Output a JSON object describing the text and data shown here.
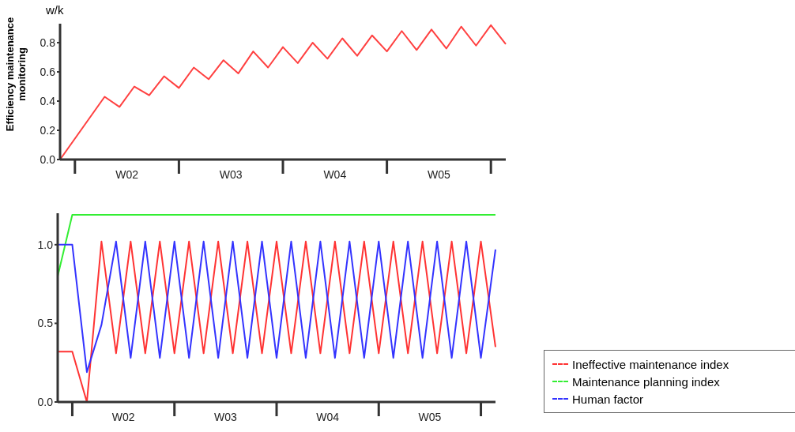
{
  "chart_data": [
    {
      "type": "line",
      "ylabel": "Efficiency maintenance monitoring",
      "annotations": [
        "w/k"
      ],
      "categories": [
        null,
        null,
        null,
        null,
        null,
        null,
        null,
        null,
        null,
        "W02",
        null,
        null,
        null,
        null,
        null,
        null,
        null,
        null,
        null,
        null,
        null,
        null,
        null,
        "W03",
        null,
        null,
        null,
        null,
        null,
        null,
        null,
        null,
        null,
        null,
        null,
        null,
        null,
        "W04",
        null,
        null,
        null,
        null,
        null,
        null,
        null,
        null,
        null,
        null,
        null,
        null,
        null,
        "W05",
        null,
        null,
        null,
        null,
        null,
        null,
        null,
        null,
        null
      ],
      "ylim": [
        0,
        0.93
      ],
      "yticks": [
        {
          "value": 0,
          "label": "0.0"
        },
        {
          "value": 0.2,
          "label": "0.2"
        },
        {
          "value": 0.4,
          "label": "0.4"
        },
        {
          "value": 0.6,
          "label": "0.6"
        },
        {
          "value": 0.8,
          "label": "0.8"
        }
      ],
      "series": [
        {
          "color": "#ff4040",
          "values": [
            0,
            null,
            null,
            null,
            null,
            null,
            0.43,
            null,
            0.36,
            null,
            0.5,
            null,
            0.44,
            null,
            0.57,
            null,
            0.49,
            null,
            0.63,
            null,
            0.55,
            null,
            0.68,
            null,
            0.59,
            null,
            0.74,
            null,
            0.63,
            null,
            0.77,
            null,
            0.66,
            null,
            0.8,
            null,
            0.69,
            null,
            0.83,
            null,
            0.71,
            null,
            0.85,
            null,
            0.74,
            null,
            0.88,
            null,
            0.75,
            null,
            0.89,
            null,
            0.76,
            null,
            0.91,
            null,
            0.78,
            null,
            0.92,
            null,
            0.79
          ]
        }
      ]
    },
    {
      "type": "line",
      "legend": "bottom right",
      "categories": [
        null,
        null,
        null,
        null,
        null,
        null,
        null,
        null,
        null,
        "W02",
        null,
        null,
        null,
        null,
        null,
        null,
        null,
        null,
        null,
        null,
        null,
        null,
        null,
        "W03",
        null,
        null,
        null,
        null,
        null,
        null,
        null,
        null,
        null,
        null,
        null,
        null,
        null,
        "W04",
        null,
        null,
        null,
        null,
        null,
        null,
        null,
        null,
        null,
        null,
        null,
        null,
        null,
        "W05",
        null,
        null,
        null,
        null,
        null,
        null,
        null,
        null,
        null
      ],
      "ylim": [
        0,
        1.2
      ],
      "yticks": [
        {
          "value": 0,
          "label": "0.0"
        },
        {
          "value": 0.5,
          "label": "0.5"
        },
        {
          "value": 1,
          "label": "1.0"
        }
      ],
      "series": [
        {
          "name": "Ineffective maintenance index",
          "color": "#ff3333",
          "values": [
            0.32,
            null,
            0.32,
            null,
            0,
            null,
            1.02,
            null,
            0.31,
            null,
            1.02,
            null,
            0.31,
            null,
            1.02,
            null,
            0.31,
            null,
            1.02,
            null,
            0.31,
            null,
            1.02,
            null,
            0.31,
            null,
            1.02,
            null,
            0.31,
            null,
            1.02,
            null,
            0.31,
            null,
            1.02,
            null,
            0.31,
            null,
            1.02,
            null,
            0.31,
            null,
            1.02,
            null,
            0.31,
            null,
            1.02,
            null,
            0.31,
            null,
            1.02,
            null,
            0.31,
            null,
            1.02,
            null,
            0.31,
            null,
            1.02,
            null,
            0.35
          ]
        },
        {
          "name": "Maintenance planning index",
          "color": "#33ee33",
          "values": [
            0.8,
            null,
            1.19,
            null,
            null,
            null,
            null,
            null,
            null,
            null,
            null,
            null,
            null,
            null,
            null,
            null,
            null,
            null,
            null,
            null,
            null,
            null,
            null,
            null,
            null,
            null,
            null,
            null,
            null,
            null,
            null,
            null,
            null,
            null,
            null,
            null,
            null,
            null,
            null,
            null,
            null,
            null,
            null,
            null,
            null,
            null,
            null,
            null,
            null,
            null,
            null,
            null,
            null,
            null,
            null,
            null,
            null,
            null,
            null,
            null,
            1.19
          ]
        },
        {
          "name": "Human factor",
          "color": "#3333ff",
          "values": [
            1.0,
            null,
            1.0,
            null,
            0.19,
            null,
            0.49,
            null,
            1.02,
            null,
            0.28,
            null,
            1.02,
            null,
            0.28,
            null,
            1.02,
            null,
            0.28,
            null,
            1.02,
            null,
            0.28,
            null,
            1.02,
            null,
            0.28,
            null,
            1.02,
            null,
            0.28,
            null,
            1.02,
            null,
            0.28,
            null,
            1.02,
            null,
            0.28,
            null,
            1.02,
            null,
            0.28,
            null,
            1.02,
            null,
            0.28,
            null,
            1.02,
            null,
            0.28,
            null,
            1.02,
            null,
            0.28,
            null,
            1.02,
            null,
            0.28,
            null,
            0.97
          ]
        }
      ]
    }
  ]
}
